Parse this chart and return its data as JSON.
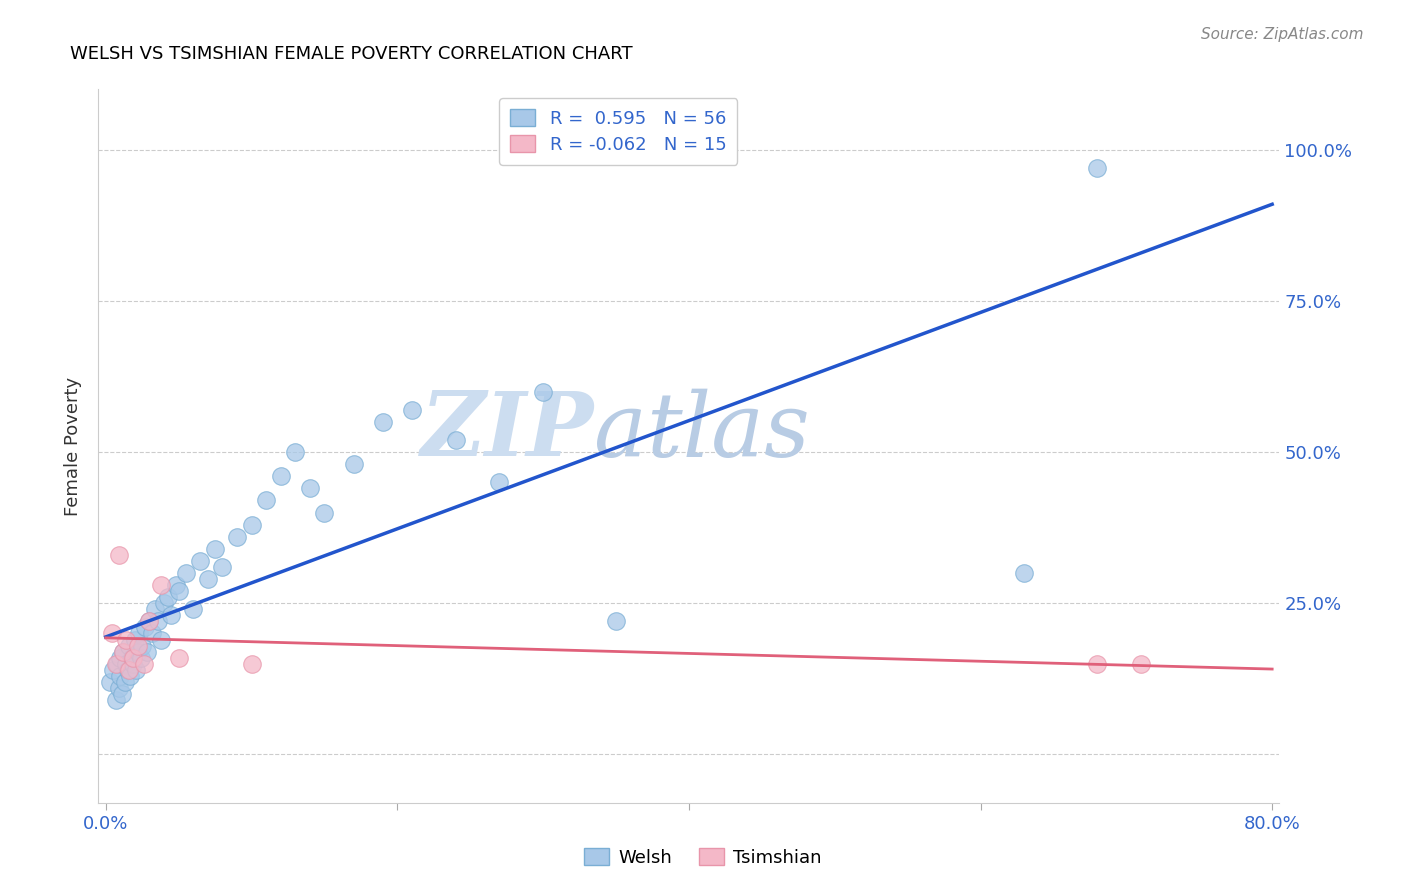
{
  "title": "WELSH VS TSIMSHIAN FEMALE POVERTY CORRELATION CHART",
  "source": "Source: ZipAtlas.com",
  "ylabel": "Female Poverty",
  "welsh_R": 0.595,
  "welsh_N": 56,
  "tsimshian_R": -0.062,
  "tsimshian_N": 15,
  "welsh_color": "#a8c8e8",
  "welsh_edge_color": "#7aaed4",
  "welsh_line_color": "#2255cc",
  "tsimshian_color": "#f4b8c8",
  "tsimshian_edge_color": "#e895aa",
  "tsimshian_line_color": "#e0607a",
  "watermark_color": "#dce8f4",
  "legend_welsh_label": "Welsh",
  "legend_tsimshian_label": "Tsimshian",
  "xlim": [
    0.0,
    0.8
  ],
  "ylim": [
    -0.08,
    1.1
  ],
  "welsh_x": [
    0.003,
    0.005,
    0.007,
    0.008,
    0.009,
    0.01,
    0.01,
    0.011,
    0.012,
    0.013,
    0.014,
    0.015,
    0.016,
    0.017,
    0.018,
    0.019,
    0.02,
    0.021,
    0.022,
    0.023,
    0.024,
    0.025,
    0.027,
    0.028,
    0.03,
    0.032,
    0.034,
    0.036,
    0.038,
    0.04,
    0.043,
    0.045,
    0.048,
    0.05,
    0.055,
    0.06,
    0.065,
    0.07,
    0.075,
    0.08,
    0.09,
    0.1,
    0.11,
    0.12,
    0.13,
    0.14,
    0.15,
    0.17,
    0.19,
    0.21,
    0.24,
    0.27,
    0.3,
    0.35,
    0.63,
    0.68
  ],
  "welsh_y": [
    0.12,
    0.14,
    0.09,
    0.15,
    0.11,
    0.16,
    0.13,
    0.1,
    0.17,
    0.12,
    0.15,
    0.14,
    0.18,
    0.13,
    0.16,
    0.15,
    0.19,
    0.14,
    0.17,
    0.2,
    0.16,
    0.18,
    0.21,
    0.17,
    0.22,
    0.2,
    0.24,
    0.22,
    0.19,
    0.25,
    0.26,
    0.23,
    0.28,
    0.27,
    0.3,
    0.24,
    0.32,
    0.29,
    0.34,
    0.31,
    0.36,
    0.38,
    0.42,
    0.46,
    0.5,
    0.44,
    0.4,
    0.48,
    0.55,
    0.57,
    0.52,
    0.45,
    0.6,
    0.22,
    0.3,
    0.97
  ],
  "tsimshian_x": [
    0.004,
    0.007,
    0.009,
    0.012,
    0.014,
    0.016,
    0.019,
    0.022,
    0.026,
    0.03,
    0.038,
    0.05,
    0.1,
    0.68,
    0.71
  ],
  "tsimshian_y": [
    0.2,
    0.15,
    0.33,
    0.17,
    0.19,
    0.14,
    0.16,
    0.18,
    0.15,
    0.22,
    0.28,
    0.16,
    0.15,
    0.15,
    0.15
  ]
}
